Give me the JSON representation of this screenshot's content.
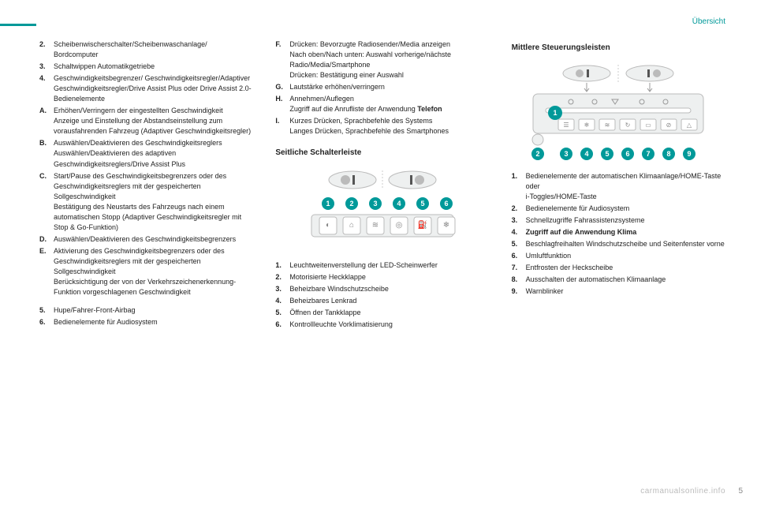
{
  "colors": {
    "accent": "#009999",
    "text": "#222222",
    "muted": "#bbbbbb"
  },
  "header": {
    "title": "Übersicht"
  },
  "col1": {
    "items1": [
      {
        "key": "2.",
        "txt": "Scheibenwischerschalter/Scheibenwaschanlage/ Bordcomputer"
      },
      {
        "key": "3.",
        "txt": "Schaltwippen Automatikgetriebe"
      },
      {
        "key": "4.",
        "txt": "Geschwindigkeitsbegrenzer/ Geschwindigkeitsregler/Adaptiver Geschwindigkeitsregler/Drive Assist Plus oder Drive Assist 2.0-Bedienelemente"
      },
      {
        "key": "A.",
        "txt": "Erhöhen/Verringern der eingestellten Geschwindigkeit\nAnzeige und Einstellung der Abstandseinstellung zum vorausfahrenden Fahrzeug (Adaptiver Geschwindigkeitsregler)"
      },
      {
        "key": "B.",
        "txt": "Auswählen/Deaktivieren des Geschwindigkeitsreglers\nAuswählen/Deaktivieren des adaptiven Geschwindigkeitsreglers/Drive Assist Plus"
      },
      {
        "key": "C.",
        "txt": "Start/Pause des Geschwindigkeitsbegrenzers oder des Geschwindigkeitsreglers mit der gespeicherten Sollgeschwindigkeit\nBestätigung des Neustarts des Fahrzeugs nach einem automatischen Stopp (Adaptiver Geschwindigkeitsregler mit Stop & Go-Funktion)"
      },
      {
        "key": "D.",
        "txt": "Auswählen/Deaktivieren des Geschwindigkeitsbegrenzers"
      },
      {
        "key": "E.",
        "txt": "Aktivierung des Geschwindigkeitsbegrenzers oder des Geschwindigkeitsreglers mit der gespeicherten Sollgeschwindigkeit\nBerücksichtigung der von der Verkehrszeichenerkennung-Funktion vorgeschlagenen Geschwindigkeit"
      }
    ],
    "items2": [
      {
        "key": "5.",
        "txt": "Hupe/Fahrer-Front-Airbag"
      },
      {
        "key": "6.",
        "txt": "Bedienelemente für Audiosystem"
      }
    ]
  },
  "col2": {
    "items1": [
      {
        "key": "F.",
        "txt": "Drücken: Bevorzugte Radiosender/Media anzeigen\nNach oben/Nach unten: Auswahl vorherige/nächste Radio/Media/Smartphone\nDrücken: Bestätigung einer Auswahl"
      },
      {
        "key": "G.",
        "txt": "Lautstärke erhöhen/verringern"
      },
      {
        "key": "H.",
        "txt": "Annehmen/Auflegen\nZugriff auf die Anrufliste der Anwendung <b>Telefon</b>"
      },
      {
        "key": "I.",
        "txt": "Kurzes Drücken, Sprachbefehle des Systems\nLanges Drücken, Sprachbefehle des Smartphones"
      }
    ],
    "section2": "Seitliche Schalterleiste",
    "diagram2": {
      "numbers": [
        1,
        2,
        3,
        4,
        5,
        6
      ],
      "circle_color": "#009999"
    },
    "items2": [
      {
        "key": "1.",
        "txt": "Leuchtweitenverstellung der LED-Scheinwerfer"
      },
      {
        "key": "2.",
        "txt": "Motorisierte Heckklappe"
      },
      {
        "key": "3.",
        "txt": "Beheizbare Windschutzscheibe"
      },
      {
        "key": "4.",
        "txt": "Beheizbares Lenkrad"
      },
      {
        "key": "5.",
        "txt": "Öffnen der Tankklappe"
      },
      {
        "key": "6.",
        "txt": "Kontrollleuchte Vorklimatisierung"
      }
    ]
  },
  "col3": {
    "section1": "Mittlere Steuerungsleisten",
    "diagram1": {
      "numbers": [
        1,
        2,
        3,
        4,
        5,
        6,
        7,
        8,
        9
      ],
      "circle_color": "#009999"
    },
    "items1": [
      {
        "key": "1.",
        "txt": "Bedienelemente der automatischen Klimaanlage/HOME-Taste\noder\ni-Toggles/HOME-Taste"
      },
      {
        "key": "2.",
        "txt": "Bedienelemente für Audiosystem"
      },
      {
        "key": "3.",
        "txt": "Schnellzugriffe Fahrassistenzsysteme"
      },
      {
        "key": "4.",
        "txt": "<b>Zugriff auf die Anwendung Klima</b>"
      },
      {
        "key": "5.",
        "txt": "Beschlagfreihalten Windschutzscheibe und Seitenfenster vorne"
      },
      {
        "key": "6.",
        "txt": "Umluftfunktion"
      },
      {
        "key": "7.",
        "txt": "Entfrosten der Heckscheibe"
      },
      {
        "key": "8.",
        "txt": "Ausschalten der automatischen Klimaanlage"
      },
      {
        "key": "9.",
        "txt": "Warnblinker"
      }
    ]
  },
  "footer": {
    "watermark": "carmanualsonline.info",
    "page": "5"
  }
}
